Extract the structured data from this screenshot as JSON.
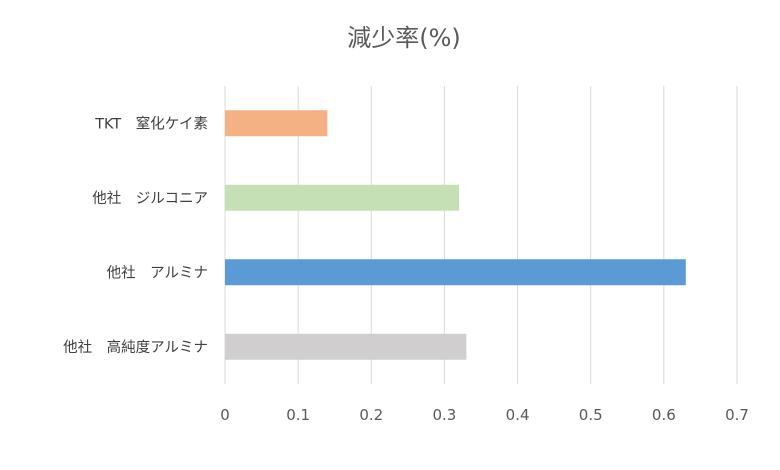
{
  "chart_data": {
    "type": "bar",
    "orientation": "horizontal",
    "title": "減少率(%)",
    "xlabel": "",
    "ylabel": "",
    "categories": [
      "TKT　窒化ケイ素",
      "他社　ジルコニア",
      "他社　アルミナ",
      "他社　高純度アルミナ"
    ],
    "values": [
      0.14,
      0.32,
      0.63,
      0.33
    ],
    "colors": [
      "#f4b183",
      "#c5e0b4",
      "#5b9bd5",
      "#d0cece"
    ],
    "xlim": [
      0,
      0.7
    ],
    "xticks": [
      "0",
      "0.1",
      "0.2",
      "0.3",
      "0.4",
      "0.5",
      "0.6",
      "0.7"
    ],
    "grid": true,
    "legend": "none"
  }
}
